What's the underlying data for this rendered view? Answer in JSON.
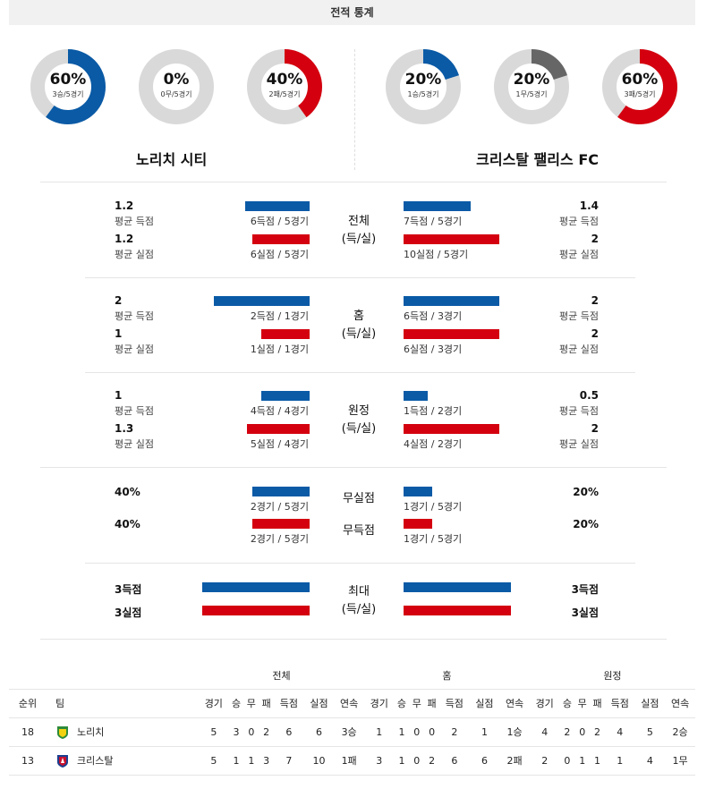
{
  "header": {
    "title": "전적 통계"
  },
  "donuts": [
    {
      "pct": "60%",
      "sub": "3승/5경기",
      "value": 0.6,
      "color": "#0a5aa6"
    },
    {
      "pct": "0%",
      "sub": "0무/5경기",
      "value": 0.0,
      "color": "#666666"
    },
    {
      "pct": "40%",
      "sub": "2패/5경기",
      "value": 0.4,
      "color": "#d4000f"
    },
    {
      "pct": "20%",
      "sub": "1승/5경기",
      "value": 0.2,
      "color": "#0a5aa6"
    },
    {
      "pct": "20%",
      "sub": "1무/5경기",
      "value": 0.2,
      "color": "#666666"
    },
    {
      "pct": "60%",
      "sub": "3패/5경기",
      "value": 0.6,
      "color": "#d4000f"
    }
  ],
  "teams": {
    "home": "노리치 시티",
    "away": "크리스탈 팰리스 FC"
  },
  "sections": {
    "total": {
      "label1": "전체",
      "label2": "(득/실)",
      "home": {
        "scored": {
          "num": "1.2",
          "lbl": "평균 득점",
          "cap": "6득점 / 5경기",
          "ratio": 0.6
        },
        "conceded": {
          "num": "1.2",
          "lbl": "평균 실점",
          "cap": "6실점 / 5경기",
          "ratio": 0.6
        }
      },
      "away": {
        "scored": {
          "num": "1.4",
          "lbl": "평균 득점",
          "cap": "7득점 / 5경기",
          "ratio": 0.7
        },
        "conceded": {
          "num": "2",
          "lbl": "평균 실점",
          "cap": "10실점 / 5경기",
          "ratio": 1.0
        }
      }
    },
    "home": {
      "label1": "홈",
      "label2": "(득/실)",
      "home": {
        "scored": {
          "num": "2",
          "lbl": "평균 득점",
          "cap": "2득점 / 1경기",
          "ratio": 1.0
        },
        "conceded": {
          "num": "1",
          "lbl": "평균 실점",
          "cap": "1실점 / 1경기",
          "ratio": 0.5
        }
      },
      "away": {
        "scored": {
          "num": "2",
          "lbl": "평균 득점",
          "cap": "6득점 / 3경기",
          "ratio": 1.0
        },
        "conceded": {
          "num": "2",
          "lbl": "평균 실점",
          "cap": "6실점 / 3경기",
          "ratio": 1.0
        }
      }
    },
    "away": {
      "label1": "원정",
      "label2": "(득/실)",
      "home": {
        "scored": {
          "num": "1",
          "lbl": "평균 득점",
          "cap": "4득점 / 4경기",
          "ratio": 0.5
        },
        "conceded": {
          "num": "1.3",
          "lbl": "평균 실점",
          "cap": "5실점 / 4경기",
          "ratio": 0.65
        }
      },
      "away": {
        "scored": {
          "num": "0.5",
          "lbl": "평균 득점",
          "cap": "1득점 / 2경기",
          "ratio": 0.25
        },
        "conceded": {
          "num": "2",
          "lbl": "평균 실점",
          "cap": "4실점 / 2경기",
          "ratio": 1.0
        }
      }
    },
    "clean": {
      "label_clean": "무실점",
      "label_fail": "무득점",
      "home": {
        "clean": {
          "num": "40%",
          "cap": "2경기 / 5경기",
          "ratio": 0.4
        },
        "fail": {
          "num": "40%",
          "cap": "2경기 / 5경기",
          "ratio": 0.4
        }
      },
      "away": {
        "clean": {
          "num": "20%",
          "cap": "1경기 / 5경기",
          "ratio": 0.2
        },
        "fail": {
          "num": "20%",
          "cap": "1경기 / 5경기",
          "ratio": 0.2
        }
      }
    },
    "max": {
      "label1": "최대",
      "label2": "(득/실)",
      "home": {
        "scored": "3득점",
        "conceded": "3실점"
      },
      "away": {
        "scored": "3득점",
        "conceded": "3실점"
      }
    }
  },
  "table": {
    "groups": [
      "전체",
      "홈",
      "원정"
    ],
    "columns": [
      "순위",
      "팀",
      "경기",
      "승",
      "무",
      "패",
      "득점",
      "실점",
      "연속",
      "경기",
      "승",
      "무",
      "패",
      "득점",
      "실점",
      "연속",
      "경기",
      "승",
      "무",
      "패",
      "득점",
      "실점",
      "연속"
    ],
    "rows": [
      {
        "crest": "norwich-crest-icon",
        "cells": [
          "18",
          "노리치",
          "5",
          "3",
          "0",
          "2",
          "6",
          "6",
          "3승",
          "1",
          "1",
          "0",
          "0",
          "2",
          "1",
          "1승",
          "4",
          "2",
          "0",
          "2",
          "4",
          "5",
          "2승"
        ]
      },
      {
        "crest": "crystal-palace-crest-icon",
        "cells": [
          "13",
          "크리스탈",
          "5",
          "1",
          "1",
          "3",
          "7",
          "10",
          "1패",
          "3",
          "1",
          "0",
          "2",
          "6",
          "6",
          "2패",
          "2",
          "0",
          "1",
          "1",
          "1",
          "4",
          "1무"
        ]
      }
    ]
  }
}
